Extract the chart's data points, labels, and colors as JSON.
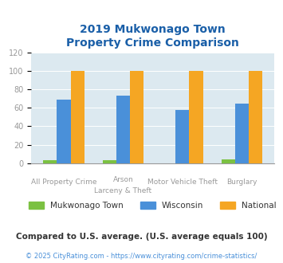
{
  "title": "2019 Mukwonago Town\nProperty Crime Comparison",
  "category_labels_line1": [
    "All Property Crime",
    "Arson",
    "Motor Vehicle Theft",
    "Burglary"
  ],
  "category_labels_line2": [
    "",
    "Larceny & Theft",
    "",
    ""
  ],
  "mukwonago": [
    3,
    3,
    0,
    4
  ],
  "wisconsin": [
    69,
    73,
    58,
    65
  ],
  "national": [
    100,
    100,
    100,
    100
  ],
  "colors_mukwonago": "#7bc142",
  "colors_wisconsin": "#4a90d9",
  "colors_national": "#f5a623",
  "ylim": [
    0,
    120
  ],
  "yticks": [
    0,
    20,
    40,
    60,
    80,
    100,
    120
  ],
  "background_color": "#dce9f0",
  "fig_background": "#ffffff",
  "title_color": "#1a5fa8",
  "axis_color": "#999999",
  "legend_labels": [
    "Mukwonago Town",
    "Wisconsin",
    "National"
  ],
  "legend_label_color": "#333333",
  "footnote1": "Compared to U.S. average. (U.S. average equals 100)",
  "footnote2": "© 2025 CityRating.com - https://www.cityrating.com/crime-statistics/",
  "footnote1_color": "#333333",
  "footnote2_color": "#4a90d9",
  "bar_width": 0.23
}
